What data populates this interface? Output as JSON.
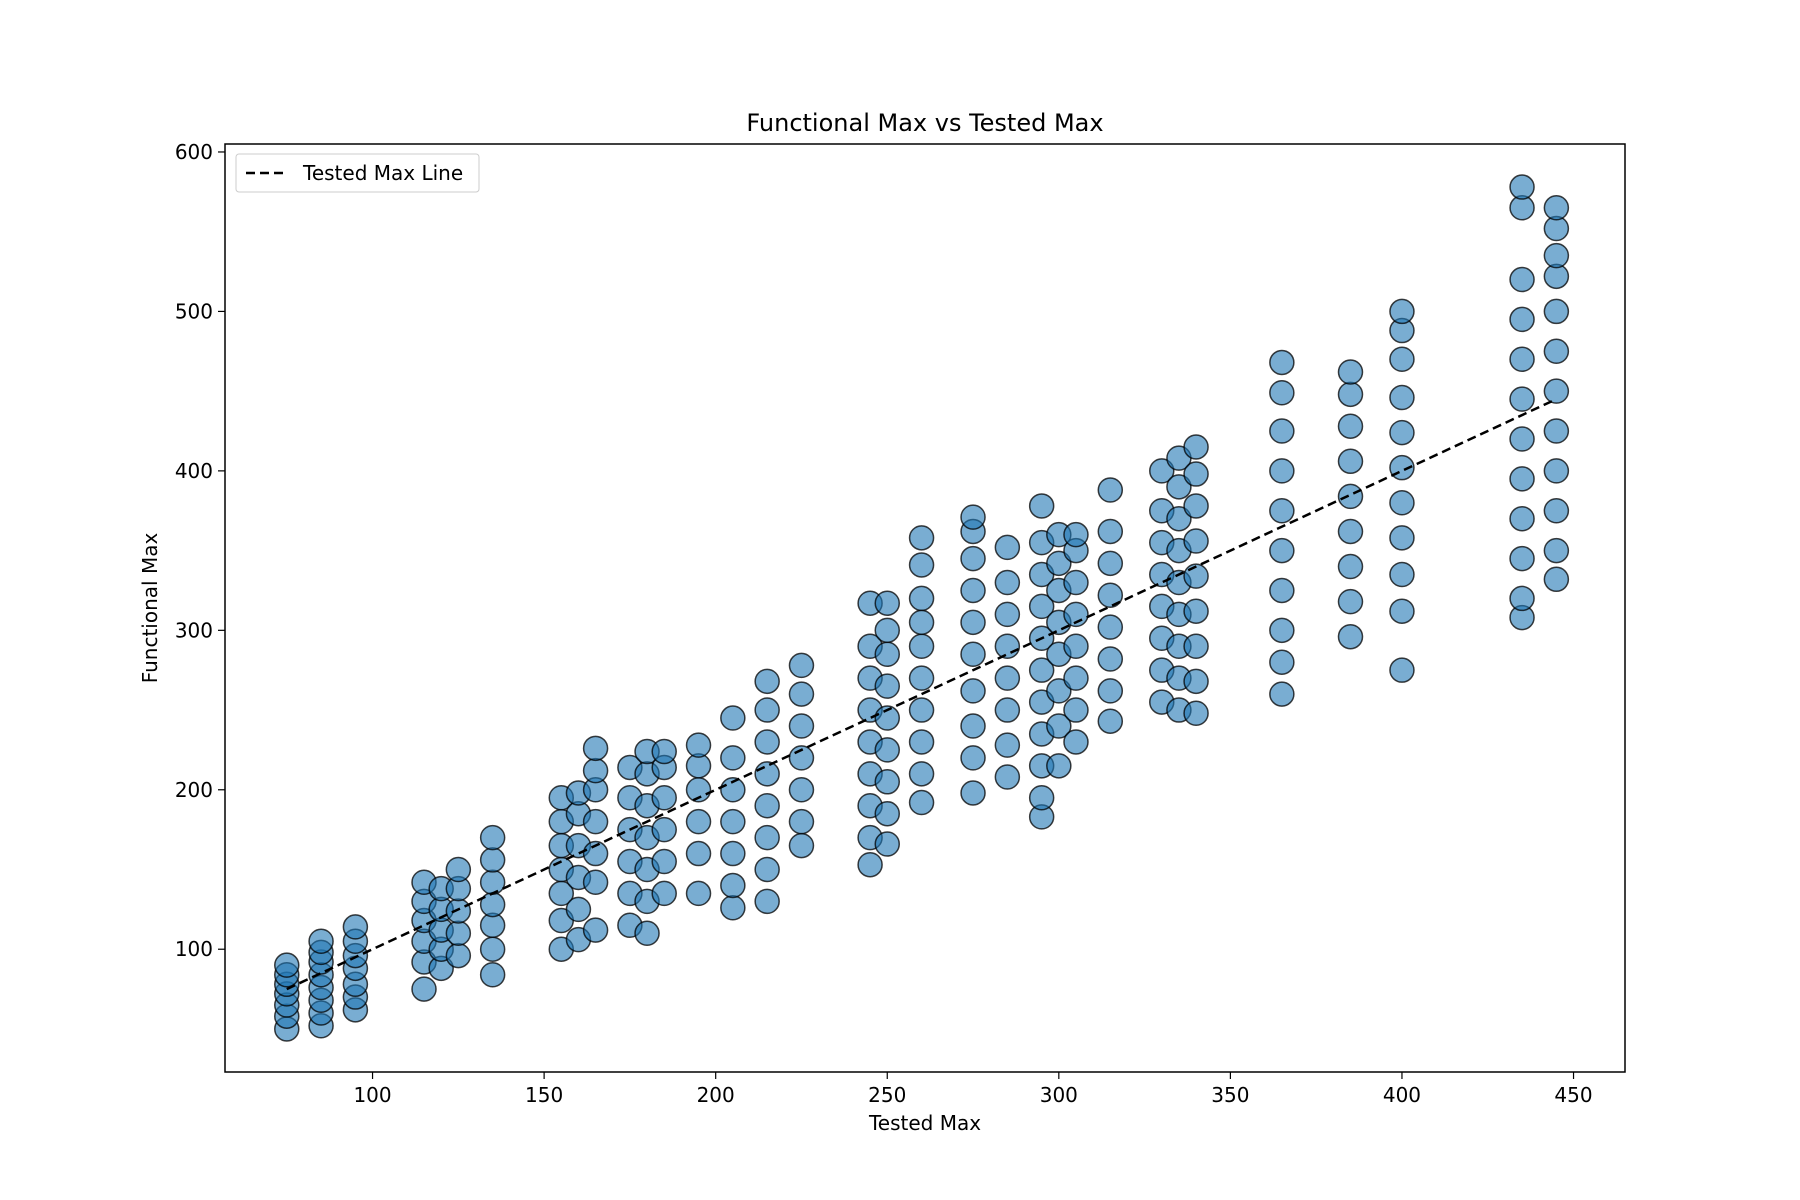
{
  "chart_data": {
    "type": "scatter",
    "title": "Functional Max vs Tested Max",
    "xlabel": "Tested Max",
    "ylabel": "Functional Max",
    "xlim": [
      57,
      465
    ],
    "ylim": [
      23,
      605
    ],
    "xticks": [
      100,
      150,
      200,
      250,
      300,
      350,
      400,
      450
    ],
    "yticks": [
      100,
      200,
      300,
      400,
      500,
      600
    ],
    "grid": false,
    "legend": {
      "placement": "upper-left",
      "entries": [
        "Tested Max Line"
      ]
    },
    "series": [
      {
        "type": "scatter",
        "color": "#1f77b4",
        "edgecolor": "#000000",
        "alpha": 0.6,
        "points": [
          [
            75,
            50
          ],
          [
            75,
            58
          ],
          [
            75,
            65
          ],
          [
            75,
            72
          ],
          [
            75,
            78
          ],
          [
            75,
            84
          ],
          [
            75,
            90
          ],
          [
            85,
            52
          ],
          [
            85,
            60
          ],
          [
            85,
            68
          ],
          [
            85,
            76
          ],
          [
            85,
            84
          ],
          [
            85,
            92
          ],
          [
            85,
            98
          ],
          [
            85,
            105
          ],
          [
            95,
            62
          ],
          [
            95,
            70
          ],
          [
            95,
            78
          ],
          [
            95,
            88
          ],
          [
            95,
            96
          ],
          [
            95,
            105
          ],
          [
            95,
            114
          ],
          [
            115,
            75
          ],
          [
            115,
            92
          ],
          [
            115,
            105
          ],
          [
            115,
            118
          ],
          [
            115,
            130
          ],
          [
            115,
            142
          ],
          [
            120,
            88
          ],
          [
            120,
            100
          ],
          [
            120,
            112
          ],
          [
            120,
            125
          ],
          [
            120,
            138
          ],
          [
            125,
            96
          ],
          [
            125,
            110
          ],
          [
            125,
            124
          ],
          [
            125,
            138
          ],
          [
            125,
            150
          ],
          [
            135,
            84
          ],
          [
            135,
            100
          ],
          [
            135,
            115
          ],
          [
            135,
            128
          ],
          [
            135,
            142
          ],
          [
            135,
            156
          ],
          [
            135,
            170
          ],
          [
            155,
            100
          ],
          [
            155,
            118
          ],
          [
            155,
            135
          ],
          [
            155,
            150
          ],
          [
            155,
            165
          ],
          [
            155,
            180
          ],
          [
            155,
            195
          ],
          [
            160,
            106
          ],
          [
            160,
            125
          ],
          [
            160,
            145
          ],
          [
            160,
            165
          ],
          [
            160,
            185
          ],
          [
            160,
            198
          ],
          [
            165,
            112
          ],
          [
            165,
            142
          ],
          [
            165,
            160
          ],
          [
            165,
            180
          ],
          [
            165,
            200
          ],
          [
            165,
            212
          ],
          [
            165,
            226
          ],
          [
            175,
            115
          ],
          [
            175,
            135
          ],
          [
            175,
            155
          ],
          [
            175,
            175
          ],
          [
            175,
            195
          ],
          [
            175,
            214
          ],
          [
            180,
            110
          ],
          [
            180,
            130
          ],
          [
            180,
            150
          ],
          [
            180,
            170
          ],
          [
            180,
            190
          ],
          [
            180,
            210
          ],
          [
            180,
            224
          ],
          [
            185,
            135
          ],
          [
            185,
            155
          ],
          [
            185,
            175
          ],
          [
            185,
            195
          ],
          [
            185,
            214
          ],
          [
            185,
            224
          ],
          [
            195,
            135
          ],
          [
            195,
            160
          ],
          [
            195,
            180
          ],
          [
            195,
            200
          ],
          [
            195,
            215
          ],
          [
            195,
            228
          ],
          [
            205,
            126
          ],
          [
            205,
            140
          ],
          [
            205,
            160
          ],
          [
            205,
            180
          ],
          [
            205,
            200
          ],
          [
            205,
            220
          ],
          [
            205,
            245
          ],
          [
            215,
            130
          ],
          [
            215,
            150
          ],
          [
            215,
            170
          ],
          [
            215,
            190
          ],
          [
            215,
            210
          ],
          [
            215,
            230
          ],
          [
            215,
            250
          ],
          [
            215,
            268
          ],
          [
            225,
            165
          ],
          [
            225,
            180
          ],
          [
            225,
            200
          ],
          [
            225,
            220
          ],
          [
            225,
            240
          ],
          [
            225,
            260
          ],
          [
            225,
            278
          ],
          [
            245,
            153
          ],
          [
            245,
            170
          ],
          [
            245,
            190
          ],
          [
            245,
            210
          ],
          [
            245,
            230
          ],
          [
            245,
            250
          ],
          [
            245,
            270
          ],
          [
            245,
            290
          ],
          [
            245,
            317
          ],
          [
            250,
            166
          ],
          [
            250,
            185
          ],
          [
            250,
            205
          ],
          [
            250,
            225
          ],
          [
            250,
            245
          ],
          [
            250,
            265
          ],
          [
            250,
            285
          ],
          [
            250,
            300
          ],
          [
            250,
            317
          ],
          [
            260,
            192
          ],
          [
            260,
            210
          ],
          [
            260,
            230
          ],
          [
            260,
            250
          ],
          [
            260,
            270
          ],
          [
            260,
            290
          ],
          [
            260,
            305
          ],
          [
            260,
            320
          ],
          [
            260,
            341
          ],
          [
            260,
            358
          ],
          [
            275,
            198
          ],
          [
            275,
            220
          ],
          [
            275,
            240
          ],
          [
            275,
            262
          ],
          [
            275,
            285
          ],
          [
            275,
            305
          ],
          [
            275,
            325
          ],
          [
            275,
            345
          ],
          [
            275,
            362
          ],
          [
            275,
            371
          ],
          [
            285,
            208
          ],
          [
            285,
            228
          ],
          [
            285,
            250
          ],
          [
            285,
            270
          ],
          [
            285,
            290
          ],
          [
            285,
            310
          ],
          [
            285,
            330
          ],
          [
            285,
            352
          ],
          [
            295,
            183
          ],
          [
            295,
            195
          ],
          [
            295,
            215
          ],
          [
            295,
            235
          ],
          [
            295,
            255
          ],
          [
            295,
            275
          ],
          [
            295,
            295
          ],
          [
            295,
            315
          ],
          [
            295,
            335
          ],
          [
            295,
            355
          ],
          [
            295,
            378
          ],
          [
            300,
            215
          ],
          [
            300,
            240
          ],
          [
            300,
            262
          ],
          [
            300,
            285
          ],
          [
            300,
            305
          ],
          [
            300,
            325
          ],
          [
            300,
            342
          ],
          [
            300,
            360
          ],
          [
            305,
            230
          ],
          [
            305,
            250
          ],
          [
            305,
            270
          ],
          [
            305,
            290
          ],
          [
            305,
            310
          ],
          [
            305,
            330
          ],
          [
            305,
            350
          ],
          [
            305,
            360
          ],
          [
            315,
            243
          ],
          [
            315,
            262
          ],
          [
            315,
            282
          ],
          [
            315,
            302
          ],
          [
            315,
            322
          ],
          [
            315,
            342
          ],
          [
            315,
            362
          ],
          [
            315,
            388
          ],
          [
            330,
            255
          ],
          [
            330,
            275
          ],
          [
            330,
            295
          ],
          [
            330,
            315
          ],
          [
            330,
            335
          ],
          [
            330,
            355
          ],
          [
            330,
            375
          ],
          [
            330,
            400
          ],
          [
            335,
            250
          ],
          [
            335,
            270
          ],
          [
            335,
            290
          ],
          [
            335,
            310
          ],
          [
            335,
            330
          ],
          [
            335,
            350
          ],
          [
            335,
            370
          ],
          [
            335,
            390
          ],
          [
            335,
            408
          ],
          [
            340,
            248
          ],
          [
            340,
            268
          ],
          [
            340,
            290
          ],
          [
            340,
            312
          ],
          [
            340,
            334
          ],
          [
            340,
            356
          ],
          [
            340,
            378
          ],
          [
            340,
            398
          ],
          [
            340,
            415
          ],
          [
            365,
            260
          ],
          [
            365,
            280
          ],
          [
            365,
            300
          ],
          [
            365,
            325
          ],
          [
            365,
            350
          ],
          [
            365,
            375
          ],
          [
            365,
            400
          ],
          [
            365,
            425
          ],
          [
            365,
            449
          ],
          [
            365,
            468
          ],
          [
            385,
            296
          ],
          [
            385,
            318
          ],
          [
            385,
            340
          ],
          [
            385,
            362
          ],
          [
            385,
            384
          ],
          [
            385,
            406
          ],
          [
            385,
            428
          ],
          [
            385,
            448
          ],
          [
            385,
            462
          ],
          [
            400,
            275
          ],
          [
            400,
            312
          ],
          [
            400,
            335
          ],
          [
            400,
            358
          ],
          [
            400,
            380
          ],
          [
            400,
            402
          ],
          [
            400,
            424
          ],
          [
            400,
            446
          ],
          [
            400,
            470
          ],
          [
            400,
            488
          ],
          [
            400,
            500
          ],
          [
            435,
            308
          ],
          [
            435,
            320
          ],
          [
            435,
            345
          ],
          [
            435,
            370
          ],
          [
            435,
            395
          ],
          [
            435,
            420
          ],
          [
            435,
            445
          ],
          [
            435,
            470
          ],
          [
            435,
            495
          ],
          [
            435,
            520
          ],
          [
            435,
            565
          ],
          [
            435,
            578
          ],
          [
            445,
            332
          ],
          [
            445,
            350
          ],
          [
            445,
            375
          ],
          [
            445,
            400
          ],
          [
            445,
            425
          ],
          [
            445,
            450
          ],
          [
            445,
            475
          ],
          [
            445,
            500
          ],
          [
            445,
            522
          ],
          [
            445,
            535
          ],
          [
            445,
            552
          ],
          [
            445,
            565
          ]
        ]
      }
    ],
    "line": {
      "name": "Tested Max Line",
      "style": "dashed",
      "color": "#000000",
      "x": [
        75,
        445
      ],
      "y": [
        75,
        445
      ]
    }
  }
}
